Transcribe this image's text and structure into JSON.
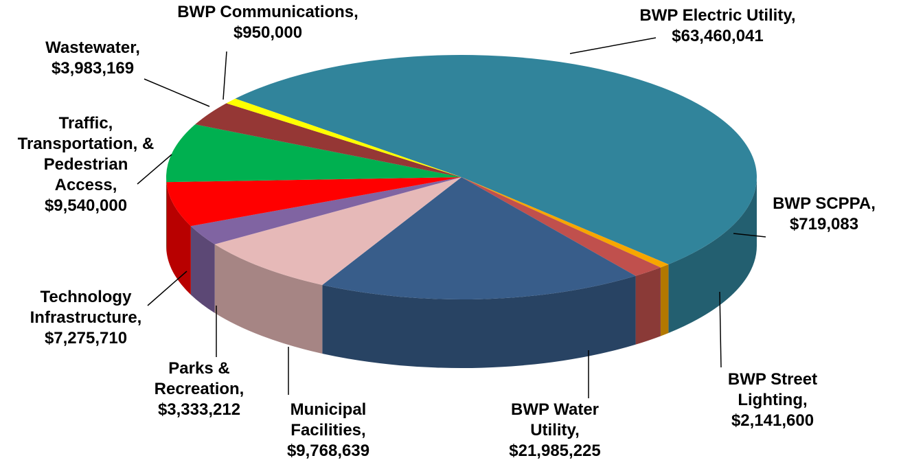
{
  "chart_data": {
    "type": "pie3d",
    "categories": [
      "BWP Electric Utility,",
      "BWP SCPPA,",
      "BWP Street Lighting,",
      "BWP Water Utility,",
      "Municipal Facilities,",
      "Parks & Recreation,",
      "Technology Infrastructure,",
      "Traffic, Transportation, & Pedestrian Access,",
      "Wastewater,",
      "BWP Communications,"
    ],
    "values": [
      63460041,
      719083,
      2141600,
      21985225,
      9768639,
      3333212,
      7275710,
      9540000,
      3983169,
      950000
    ],
    "value_labels": [
      "$63,460,041",
      "$719,083",
      "$2,141,600",
      "$21,985,225",
      "$9,768,639",
      "$3,333,212",
      "$7,275,710",
      "$9,540,000",
      "$3,983,169",
      "$950,000"
    ],
    "colors": [
      "#31849b",
      "#f7a600",
      "#c0504d",
      "#385d8a",
      "#e6b9b8",
      "#8064a2",
      "#ff0000",
      "#00b050",
      "#953735",
      "#ffff00"
    ]
  }
}
